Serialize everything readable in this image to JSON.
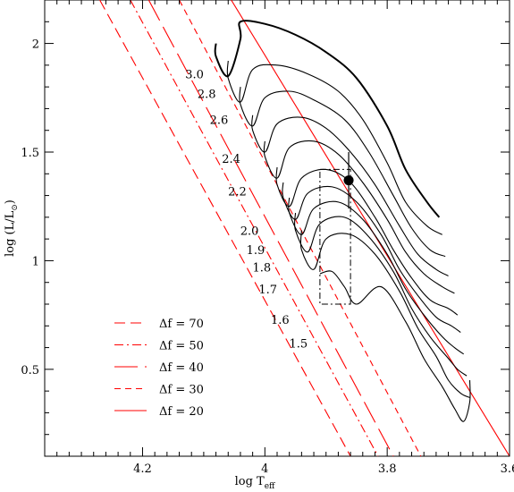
{
  "chart_data": {
    "type": "line",
    "title": "",
    "xlabel_main": "log T",
    "xlabel_sub": "eff",
    "ylabel_pre": "log (L/L",
    "ylabel_post": ")",
    "x_reversed": true,
    "xlim": [
      4.36,
      3.6
    ],
    "ylim": [
      0.1,
      2.2
    ],
    "xticks": [
      {
        "value": 4.2,
        "label": "4.2"
      },
      {
        "value": 4.0,
        "label": "4"
      },
      {
        "value": 3.8,
        "label": "3.8"
      },
      {
        "value": 3.6,
        "label": "3.6"
      }
    ],
    "yticks": [
      {
        "value": 0.5,
        "label": "0.5"
      },
      {
        "value": 1.0,
        "label": "1"
      },
      {
        "value": 1.5,
        "label": "1.5"
      },
      {
        "value": 2.0,
        "label": "2"
      }
    ],
    "colors": {
      "frame": "#000000",
      "tracks": "#000000",
      "isolines": "#ff0000",
      "box": "#000000"
    },
    "mass_labels": [
      {
        "label": "3.0",
        "x": 4.1,
        "y": 1.84
      },
      {
        "label": "2.8",
        "x": 4.08,
        "y": 1.75
      },
      {
        "label": "2.6",
        "x": 4.06,
        "y": 1.63
      },
      {
        "label": "2.4",
        "x": 4.04,
        "y": 1.45
      },
      {
        "label": "2.2",
        "x": 4.03,
        "y": 1.3
      },
      {
        "label": "2.0",
        "x": 4.01,
        "y": 1.12
      },
      {
        "label": "1.9",
        "x": 4.0,
        "y": 1.03
      },
      {
        "label": "1.8",
        "x": 3.99,
        "y": 0.95
      },
      {
        "label": "1.7",
        "x": 3.98,
        "y": 0.85
      },
      {
        "label": "1.6",
        "x": 3.96,
        "y": 0.71
      },
      {
        "label": "1.5",
        "x": 3.93,
        "y": 0.6
      }
    ],
    "tracks": [
      {
        "mass": "3.0",
        "points": [
          [
            4.08,
            2.0
          ],
          [
            4.08,
            1.94
          ],
          [
            4.06,
            1.85
          ],
          [
            4.04,
            2.02
          ],
          [
            4.04,
            2.1
          ],
          [
            4.0,
            2.09
          ],
          [
            3.95,
            2.04
          ],
          [
            3.9,
            1.96
          ],
          [
            3.85,
            1.84
          ],
          [
            3.8,
            1.62
          ],
          [
            3.77,
            1.42
          ],
          [
            3.735,
            1.27
          ],
          [
            3.715,
            1.2
          ]
        ]
      },
      {
        "mass": "2.8",
        "points": [
          [
            4.06,
            1.92
          ],
          [
            4.06,
            1.84
          ],
          [
            4.04,
            1.73
          ],
          [
            4.02,
            1.88
          ],
          [
            3.98,
            1.9
          ],
          [
            3.93,
            1.86
          ],
          [
            3.88,
            1.78
          ],
          [
            3.84,
            1.65
          ],
          [
            3.8,
            1.45
          ],
          [
            3.77,
            1.27
          ],
          [
            3.735,
            1.16
          ],
          [
            3.71,
            1.12
          ]
        ]
      },
      {
        "mass": "2.6",
        "points": [
          [
            4.04,
            1.8
          ],
          [
            4.04,
            1.72
          ],
          [
            4.02,
            1.62
          ],
          [
            4.0,
            1.75
          ],
          [
            3.96,
            1.78
          ],
          [
            3.92,
            1.74
          ],
          [
            3.87,
            1.65
          ],
          [
            3.83,
            1.5
          ],
          [
            3.79,
            1.3
          ],
          [
            3.76,
            1.15
          ],
          [
            3.73,
            1.05
          ],
          [
            3.705,
            1.02
          ]
        ]
      },
      {
        "mass": "2.4",
        "points": [
          [
            4.02,
            1.67
          ],
          [
            4.02,
            1.6
          ],
          [
            4.0,
            1.5
          ],
          [
            3.98,
            1.63
          ],
          [
            3.94,
            1.66
          ],
          [
            3.9,
            1.61
          ],
          [
            3.86,
            1.5
          ],
          [
            3.82,
            1.35
          ],
          [
            3.78,
            1.16
          ],
          [
            3.75,
            1.03
          ],
          [
            3.72,
            0.96
          ],
          [
            3.7,
            0.93
          ]
        ]
      },
      {
        "mass": "2.2",
        "points": [
          [
            4.0,
            1.55
          ],
          [
            4.0,
            1.48
          ],
          [
            3.98,
            1.38
          ],
          [
            3.96,
            1.52
          ],
          [
            3.92,
            1.55
          ],
          [
            3.88,
            1.49
          ],
          [
            3.84,
            1.36
          ],
          [
            3.8,
            1.19
          ],
          [
            3.77,
            1.04
          ],
          [
            3.74,
            0.94
          ],
          [
            3.71,
            0.88
          ],
          [
            3.69,
            0.85
          ]
        ]
      },
      {
        "mass": "2.0",
        "points": [
          [
            3.98,
            1.43
          ],
          [
            3.98,
            1.35
          ],
          [
            3.96,
            1.25
          ],
          [
            3.94,
            1.38
          ],
          [
            3.9,
            1.42
          ],
          [
            3.86,
            1.36
          ],
          [
            3.82,
            1.2
          ],
          [
            3.79,
            1.05
          ],
          [
            3.76,
            0.92
          ],
          [
            3.73,
            0.82
          ],
          [
            3.7,
            0.78
          ],
          [
            3.685,
            0.75
          ]
        ]
      },
      {
        "mass": "1.9",
        "points": [
          [
            3.97,
            1.36
          ],
          [
            3.97,
            1.29
          ],
          [
            3.95,
            1.19
          ],
          [
            3.93,
            1.31
          ],
          [
            3.89,
            1.34
          ],
          [
            3.85,
            1.27
          ],
          [
            3.81,
            1.12
          ],
          [
            3.78,
            0.96
          ],
          [
            3.75,
            0.84
          ],
          [
            3.72,
            0.74
          ],
          [
            3.695,
            0.7
          ],
          [
            3.68,
            0.67
          ]
        ]
      },
      {
        "mass": "1.8",
        "points": [
          [
            3.96,
            1.29
          ],
          [
            3.96,
            1.22
          ],
          [
            3.94,
            1.12
          ],
          [
            3.92,
            1.24
          ],
          [
            3.88,
            1.27
          ],
          [
            3.84,
            1.19
          ],
          [
            3.8,
            1.03
          ],
          [
            3.77,
            0.87
          ],
          [
            3.74,
            0.75
          ],
          [
            3.71,
            0.65
          ],
          [
            3.69,
            0.6
          ],
          [
            3.675,
            0.57
          ]
        ]
      },
      {
        "mass": "1.7",
        "points": [
          [
            3.95,
            1.22
          ],
          [
            3.95,
            1.14
          ],
          [
            3.93,
            1.04
          ],
          [
            3.91,
            1.17
          ],
          [
            3.87,
            1.2
          ],
          [
            3.83,
            1.11
          ],
          [
            3.79,
            0.95
          ],
          [
            3.76,
            0.78
          ],
          [
            3.73,
            0.65
          ],
          [
            3.7,
            0.55
          ],
          [
            3.685,
            0.5
          ],
          [
            3.67,
            0.47
          ]
        ]
      },
      {
        "mass": "1.6",
        "points": [
          [
            3.94,
            1.14
          ],
          [
            3.94,
            1.05
          ],
          [
            3.92,
            0.96
          ],
          [
            3.9,
            1.1
          ],
          [
            3.86,
            1.12
          ],
          [
            3.82,
            1.03
          ],
          [
            3.78,
            0.86
          ],
          [
            3.75,
            0.69
          ],
          [
            3.72,
            0.56
          ],
          [
            3.7,
            0.45
          ],
          [
            3.68,
            0.39
          ],
          [
            3.665,
            0.37
          ]
        ]
      },
      {
        "mass": "1.5",
        "points": [
          [
            3.91,
            0.94
          ],
          [
            3.89,
            0.95
          ],
          [
            3.87,
            0.88
          ],
          [
            3.85,
            0.8
          ],
          [
            3.81,
            0.88
          ],
          [
            3.77,
            0.72
          ],
          [
            3.74,
            0.55
          ],
          [
            3.71,
            0.42
          ],
          [
            3.69,
            0.32
          ],
          [
            3.675,
            0.26
          ],
          [
            3.665,
            0.35
          ],
          [
            3.665,
            0.45
          ]
        ]
      }
    ],
    "isolines": [
      {
        "label": "70",
        "style": "dash",
        "points": [
          [
            4.27,
            2.2
          ],
          [
            3.86,
            0.1
          ]
        ]
      },
      {
        "label": "50",
        "style": "dashdot",
        "points": [
          [
            4.22,
            2.2
          ],
          [
            3.815,
            0.1
          ]
        ]
      },
      {
        "label": "40",
        "style": "longdash",
        "points": [
          [
            4.19,
            2.2
          ],
          [
            3.79,
            0.1
          ]
        ]
      },
      {
        "label": "30",
        "style": "shortdash",
        "points": [
          [
            4.14,
            2.2
          ],
          [
            3.745,
            0.1
          ]
        ]
      },
      {
        "label": "20",
        "style": "solid",
        "points": [
          [
            4.055,
            2.2
          ],
          [
            3.6,
            0.1
          ]
        ]
      }
    ],
    "legend": {
      "position": "lower-left",
      "entries": [
        {
          "style": "dash",
          "text": "Δf   = 70"
        },
        {
          "style": "dashdot",
          "text": "Δf  = 50"
        },
        {
          "style": "longdash",
          "text": "Δf  = 40"
        },
        {
          "style": "shortdash",
          "text": "Δf  = 30"
        },
        {
          "style": "solid",
          "text": "Δf  = 20"
        }
      ]
    },
    "observed_star": {
      "x": 3.863,
      "y": 1.37,
      "x_err": 0.008,
      "y_err": 0.13
    },
    "error_box": {
      "x": [
        3.91,
        3.86
      ],
      "y": [
        0.8,
        1.42
      ]
    }
  }
}
